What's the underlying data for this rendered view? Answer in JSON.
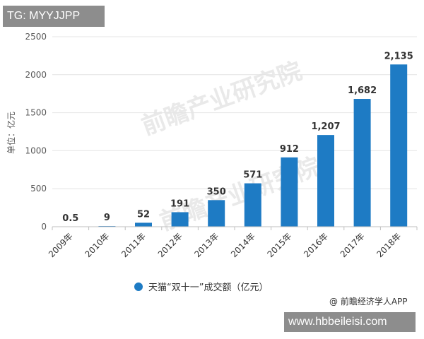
{
  "header_tag": "TG: MYYJJPP",
  "footer_url": "www.hbbeileisi.com",
  "source_credit": "@ 前瞻经济学人APP",
  "colors": {
    "bar": "#1e7bc4",
    "grid": "#e4e4e4",
    "axis": "#bfbfbf"
  },
  "chart_data": {
    "type": "bar",
    "ylabel": "单位：亿元",
    "ylim": [
      0,
      2500
    ],
    "yticks": [
      0,
      500,
      1000,
      1500,
      2000,
      2500
    ],
    "categories": [
      "2009年",
      "2010年",
      "2011年",
      "2012年",
      "2013年",
      "2014年",
      "2015年",
      "2016年",
      "2017年",
      "2018年"
    ],
    "series": [
      {
        "name": "天猫“双十一”成交额（亿元）",
        "values": [
          0.5,
          9,
          52,
          191,
          350,
          571,
          912,
          1207,
          1682,
          2135
        ],
        "labels": [
          "0.5",
          "9",
          "52",
          "191",
          "350",
          "571",
          "912",
          "1,207",
          "1,682",
          "2,135"
        ]
      }
    ],
    "grid": true,
    "legend_position": "bottom"
  }
}
